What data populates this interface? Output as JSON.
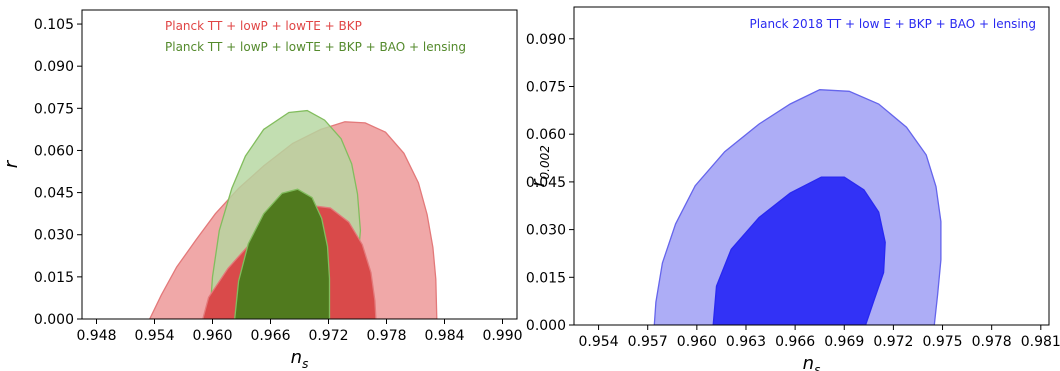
{
  "chart_data": [
    {
      "type": "contour",
      "title": "",
      "xlabel": "n_s",
      "ylabel": "r",
      "xlim": [
        0.9465,
        0.9915
      ],
      "ylim": [
        0.0,
        0.11
      ],
      "x_ticks": [
        "0.948",
        "0.954",
        "0.960",
        "0.966",
        "0.972",
        "0.978",
        "0.984",
        "0.990"
      ],
      "y_ticks": [
        "0.000",
        "0.015",
        "0.030",
        "0.045",
        "0.060",
        "0.075",
        "0.090",
        "0.105"
      ],
      "x_tick_values": [
        0.948,
        0.954,
        0.96,
        0.966,
        0.972,
        0.978,
        0.984,
        0.99
      ],
      "y_tick_values": [
        0.0,
        0.015,
        0.03,
        0.045,
        0.06,
        0.075,
        0.09,
        0.105
      ],
      "legend_position": "top-right",
      "series": [
        {
          "name": "Planck TT + lowP + lowTE + BKP",
          "color": "#e3797a",
          "label_color": "#e04545",
          "contours": [
            {
              "level": "95%",
              "color": "#f0a8a8",
              "points": [
                [
                  0.9535,
                  0.0
                ],
                [
                  0.9547,
                  0.0085
                ],
                [
                  0.9563,
                  0.0185
                ],
                [
                  0.9583,
                  0.0282
                ],
                [
                  0.9603,
                  0.0375
                ],
                [
                  0.9627,
                  0.0465
                ],
                [
                  0.9653,
                  0.0545
                ],
                [
                  0.9683,
                  0.0625
                ],
                [
                  0.9712,
                  0.0675
                ],
                [
                  0.9737,
                  0.0702
                ],
                [
                  0.9758,
                  0.0698
                ],
                [
                  0.9779,
                  0.0665
                ],
                [
                  0.9798,
                  0.059
                ],
                [
                  0.9813,
                  0.0485
                ],
                [
                  0.9822,
                  0.0372
                ],
                [
                  0.9828,
                  0.0255
                ],
                [
                  0.9831,
                  0.0142
                ],
                [
                  0.9832,
                  0.0
                ]
              ]
            },
            {
              "level": "68%",
              "color": "#d94a4a",
              "points": [
                [
                  0.959,
                  0.0
                ],
                [
                  0.9596,
                  0.0077
                ],
                [
                  0.9616,
                  0.018
                ],
                [
                  0.9642,
                  0.028
                ],
                [
                  0.9673,
                  0.0365
                ],
                [
                  0.9699,
                  0.0405
                ],
                [
                  0.9722,
                  0.0395
                ],
                [
                  0.9741,
                  0.0345
                ],
                [
                  0.9755,
                  0.0265
                ],
                [
                  0.9764,
                  0.0165
                ],
                [
                  0.9768,
                  0.0065
                ],
                [
                  0.9769,
                  0.0
                ]
              ]
            }
          ]
        },
        {
          "name": "Planck TT + lowP + lowTE + BKP + BAO + lensing",
          "color": "#82bd5e",
          "label_color": "#548a2c",
          "contours": [
            {
              "level": "95%",
              "color": "#b5d7a0",
              "points": [
                [
                  0.9597,
                  0.0
                ],
                [
                  0.96,
                  0.015
                ],
                [
                  0.9607,
                  0.0315
                ],
                [
                  0.962,
                  0.0465
                ],
                [
                  0.9634,
                  0.058
                ],
                [
                  0.9653,
                  0.0675
                ],
                [
                  0.9679,
                  0.0735
                ],
                [
                  0.9698,
                  0.0742
                ],
                [
                  0.9716,
                  0.0708
                ],
                [
                  0.9733,
                  0.0642
                ],
                [
                  0.9744,
                  0.0552
                ],
                [
                  0.975,
                  0.0445
                ],
                [
                  0.9753,
                  0.0315
                ],
                [
                  0.975,
                  0.019
                ],
                [
                  0.9742,
                  0.009
                ],
                [
                  0.9731,
                  0.0028
                ]
              ]
            },
            {
              "level": "68%",
              "color": "#507a1e",
              "points": [
                [
                  0.9623,
                  0.0
                ],
                [
                  0.9627,
                  0.0135
                ],
                [
                  0.9637,
                  0.0268
                ],
                [
                  0.9653,
                  0.0375
                ],
                [
                  0.9672,
                  0.0448
                ],
                [
                  0.9688,
                  0.0462
                ],
                [
                  0.9703,
                  0.0432
                ],
                [
                  0.9713,
                  0.0358
                ],
                [
                  0.9719,
                  0.0258
                ],
                [
                  0.9721,
                  0.0145
                ],
                [
                  0.9721,
                  0.0
                ]
              ]
            }
          ]
        }
      ]
    },
    {
      "type": "contour",
      "title": "",
      "xlabel": "n_s",
      "ylabel": "r_0.002",
      "xlim": [
        0.9525,
        0.9815
      ],
      "ylim": [
        0.0,
        0.1
      ],
      "x_ticks": [
        "0.954",
        "0.957",
        "0.960",
        "0.963",
        "0.966",
        "0.969",
        "0.972",
        "0.975",
        "0.978",
        "0.981"
      ],
      "y_ticks": [
        "0.000",
        "0.015",
        "0.030",
        "0.045",
        "0.060",
        "0.075",
        "0.090"
      ],
      "x_tick_values": [
        0.954,
        0.957,
        0.96,
        0.963,
        0.966,
        0.969,
        0.972,
        0.975,
        0.978,
        0.981
      ],
      "y_tick_values": [
        0.0,
        0.015,
        0.03,
        0.045,
        0.06,
        0.075,
        0.09
      ],
      "legend_position": "top-right",
      "series": [
        {
          "name": "Planck 2018 TT + low E + BKP + BAO + lensing",
          "color": "#2929f0",
          "label_color": "#2929f0",
          "contours": [
            {
              "level": "95%",
              "color": "#adadf6",
              "edge": "#6565ec",
              "points": [
                [
                  0.9574,
                  0.0
                ],
                [
                  0.9575,
                  0.0072
                ],
                [
                  0.9579,
                  0.0195
                ],
                [
                  0.9587,
                  0.0318
                ],
                [
                  0.9599,
                  0.0438
                ],
                [
                  0.9617,
                  0.0545
                ],
                [
                  0.9638,
                  0.0632
                ],
                [
                  0.9657,
                  0.0695
                ],
                [
                  0.9675,
                  0.074
                ],
                [
                  0.9693,
                  0.0735
                ],
                [
                  0.9711,
                  0.0695
                ],
                [
                  0.9728,
                  0.0622
                ],
                [
                  0.974,
                  0.0535
                ],
                [
                  0.9746,
                  0.0435
                ],
                [
                  0.9749,
                  0.0325
                ],
                [
                  0.9749,
                  0.0205
                ],
                [
                  0.9747,
                  0.0095
                ],
                [
                  0.9745,
                  0.0
                ]
              ]
            },
            {
              "level": "68%",
              "color": "#3232f6",
              "points": [
                [
                  0.961,
                  0.0
                ],
                [
                  0.9612,
                  0.0122
                ],
                [
                  0.9621,
                  0.0238
                ],
                [
                  0.9638,
                  0.0338
                ],
                [
                  0.9657,
                  0.0415
                ],
                [
                  0.9676,
                  0.0465
                ],
                [
                  0.969,
                  0.0465
                ],
                [
                  0.9702,
                  0.0425
                ],
                [
                  0.9711,
                  0.0355
                ],
                [
                  0.9715,
                  0.026
                ],
                [
                  0.9714,
                  0.0165
                ],
                [
                  0.9708,
                  0.0075
                ],
                [
                  0.9703,
                  0.0
                ]
              ]
            }
          ]
        }
      ]
    }
  ]
}
